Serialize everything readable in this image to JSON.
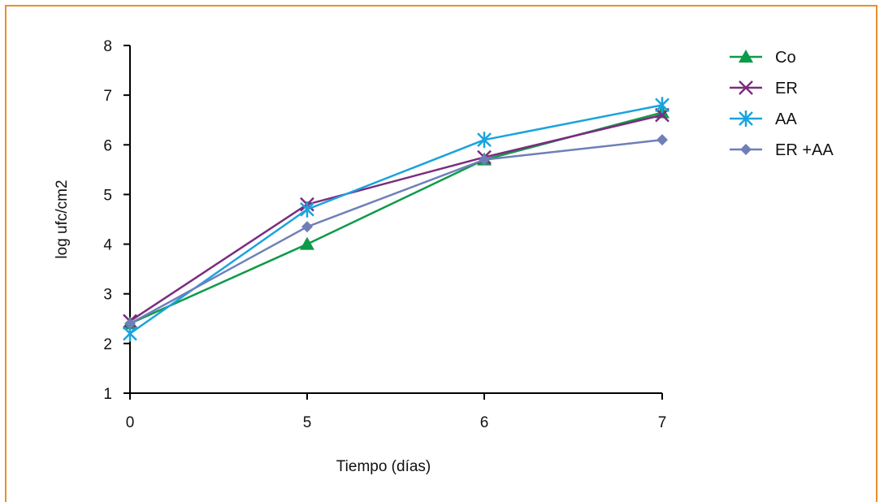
{
  "chart_data": {
    "type": "line",
    "title": "",
    "xlabel": "Tiempo (días)",
    "ylabel": "log ufc/cm2",
    "categories": [
      "0",
      "5",
      "6",
      "7"
    ],
    "ylim": [
      1,
      8
    ],
    "yticks": [
      1,
      2,
      3,
      4,
      5,
      6,
      7,
      8
    ],
    "grid": false,
    "legend_position": "right",
    "series": [
      {
        "name": "Co",
        "marker": "triangle",
        "color": "#0e9a4b",
        "values": [
          2.4,
          4.0,
          5.7,
          6.65
        ]
      },
      {
        "name": "ER",
        "marker": "x",
        "color": "#7a2d7e",
        "values": [
          2.45,
          4.8,
          5.75,
          6.6
        ]
      },
      {
        "name": "AA",
        "marker": "star",
        "color": "#1ba3dd",
        "values": [
          2.2,
          4.7,
          6.1,
          6.8
        ]
      },
      {
        "name": "ER +AA",
        "marker": "diamond",
        "color": "#6e7fb8",
        "values": [
          2.4,
          4.35,
          5.7,
          6.1
        ]
      }
    ]
  }
}
